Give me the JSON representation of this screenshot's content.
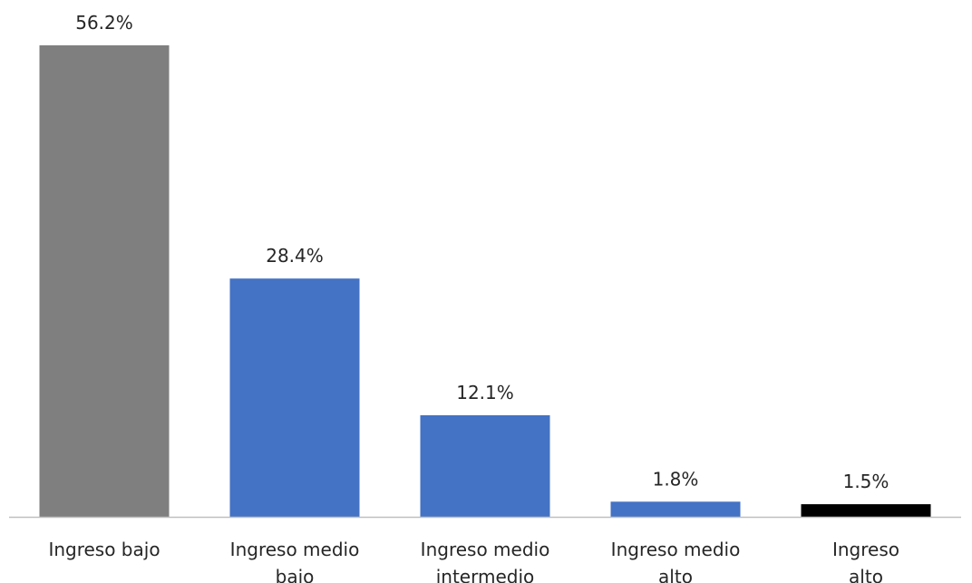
{
  "chart_data": {
    "type": "bar",
    "categories": [
      [
        "Ingreso bajo"
      ],
      [
        "Ingreso medio",
        "bajo"
      ],
      [
        "Ingreso medio",
        "intermedio"
      ],
      [
        "Ingreso medio",
        "alto"
      ],
      [
        "Ingreso",
        "alto"
      ]
    ],
    "values": [
      56.2,
      28.4,
      12.1,
      1.8,
      1.5
    ],
    "data_labels": [
      "56.2%",
      "28.4%",
      "12.1%",
      "1.8%",
      "1.5%"
    ],
    "bar_colors": [
      "#7f7f7f",
      "#4472c4",
      "#4472c4",
      "#4472c4",
      "#000000"
    ],
    "axis_color": "#bfbfbf",
    "title": "",
    "xlabel": "",
    "ylabel": "",
    "ylim": [
      0,
      56.2
    ],
    "grid": false,
    "legend": "none"
  }
}
